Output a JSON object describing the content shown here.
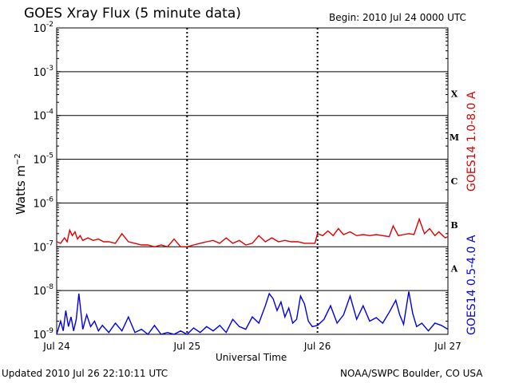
{
  "header": {
    "title": "GOES Xray Flux (5 minute data)",
    "begin": "Begin:  2010 Jul 24 0000 UTC"
  },
  "footer": {
    "updated": "Updated 2010 Jul 26 22:10:11 UTC",
    "credit": "NOAA/SWPC Boulder, CO USA"
  },
  "chart_data": {
    "type": "line",
    "title": "GOES Xray Flux (5 minute data)",
    "xlabel": "Universal Time",
    "ylabel": "Watts m^-2",
    "yscale": "log",
    "ylim": [
      1e-09,
      0.01
    ],
    "x_ticks": [
      "Jul 24",
      "Jul 25",
      "Jul 26",
      "Jul 27"
    ],
    "y_ticks": [
      {
        "base": "10",
        "exp": "-9"
      },
      {
        "base": "10",
        "exp": "-8"
      },
      {
        "base": "10",
        "exp": "-7"
      },
      {
        "base": "10",
        "exp": "-6"
      },
      {
        "base": "10",
        "exp": "-5"
      },
      {
        "base": "10",
        "exp": "-4"
      },
      {
        "base": "10",
        "exp": "-3"
      },
      {
        "base": "10",
        "exp": "-2"
      }
    ],
    "flare_classes": [
      {
        "label": "A",
        "exp": -8
      },
      {
        "label": "B",
        "exp": -7
      },
      {
        "label": "C",
        "exp": -6
      },
      {
        "label": "M",
        "exp": -5
      },
      {
        "label": "X",
        "exp": -4
      }
    ],
    "grid": true,
    "series": [
      {
        "name": "GOES14 1.0-8.0 A",
        "color": "#e00000",
        "x_days": [
          0.0,
          0.03,
          0.06,
          0.08,
          0.1,
          0.12,
          0.14,
          0.16,
          0.18,
          0.2,
          0.24,
          0.28,
          0.32,
          0.36,
          0.4,
          0.45,
          0.5,
          0.55,
          0.6,
          0.65,
          0.7,
          0.75,
          0.8,
          0.85,
          0.9,
          0.95,
          1.0,
          1.05,
          1.1,
          1.15,
          1.2,
          1.25,
          1.3,
          1.35,
          1.4,
          1.45,
          1.5,
          1.55,
          1.6,
          1.65,
          1.7,
          1.75,
          1.8,
          1.85,
          1.9,
          1.95,
          1.98,
          2.0,
          2.04,
          2.08,
          2.12,
          2.16,
          2.2,
          2.25,
          2.3,
          2.35,
          2.4,
          2.45,
          2.5,
          2.55,
          2.58,
          2.62,
          2.66,
          2.7,
          2.74,
          2.78,
          2.82,
          2.86,
          2.9,
          2.93,
          2.96,
          2.98,
          3.0
        ],
        "y": [
          1.3e-07,
          1.2e-07,
          1.6e-07,
          1.3e-07,
          2.4e-07,
          1.8e-07,
          2.2e-07,
          1.5e-07,
          1.8e-07,
          1.4e-07,
          1.6e-07,
          1.4e-07,
          1.5e-07,
          1.3e-07,
          1.3e-07,
          1.2e-07,
          2e-07,
          1.3e-07,
          1.2e-07,
          1.1e-07,
          1.1e-07,
          1e-07,
          1.1e-07,
          1e-07,
          1.5e-07,
          1e-07,
          1e-07,
          1.1e-07,
          1.2e-07,
          1.3e-07,
          1.4e-07,
          1.2e-07,
          1.6e-07,
          1.2e-07,
          1.4e-07,
          1.1e-07,
          1.2e-07,
          1.8e-07,
          1.3e-07,
          1.6e-07,
          1.3e-07,
          1.4e-07,
          1.3e-07,
          1.3e-07,
          1.2e-07,
          1.2e-07,
          1.2e-07,
          2e-07,
          1.8e-07,
          2.3e-07,
          1.8e-07,
          2.6e-07,
          1.9e-07,
          2.2e-07,
          1.8e-07,
          1.9e-07,
          1.8e-07,
          1.9e-07,
          1.8e-07,
          1.7e-07,
          3e-07,
          1.8e-07,
          1.9e-07,
          2e-07,
          1.9e-07,
          4.3e-07,
          2e-07,
          2.6e-07,
          1.8e-07,
          2.2e-07,
          1.8e-07,
          1.6e-07,
          1.7e-07
        ]
      },
      {
        "name": "GOES14 0.5-4.0 A",
        "color": "#0000e8",
        "x_days": [
          0.0,
          0.03,
          0.05,
          0.07,
          0.09,
          0.11,
          0.13,
          0.15,
          0.17,
          0.2,
          0.23,
          0.26,
          0.29,
          0.32,
          0.35,
          0.4,
          0.45,
          0.5,
          0.55,
          0.6,
          0.65,
          0.7,
          0.75,
          0.8,
          0.85,
          0.9,
          0.95,
          1.0,
          1.05,
          1.1,
          1.15,
          1.2,
          1.25,
          1.3,
          1.35,
          1.4,
          1.45,
          1.5,
          1.55,
          1.6,
          1.63,
          1.66,
          1.69,
          1.72,
          1.75,
          1.78,
          1.81,
          1.84,
          1.87,
          1.9,
          1.93,
          1.96,
          2.0,
          2.05,
          2.1,
          2.15,
          2.2,
          2.25,
          2.3,
          2.35,
          2.4,
          2.45,
          2.5,
          2.55,
          2.6,
          2.63,
          2.66,
          2.7,
          2.73,
          2.76,
          2.8,
          2.85,
          2.9,
          2.95,
          3.0
        ],
        "y": [
          1e-09,
          2e-09,
          1.2e-09,
          3.5e-09,
          1.5e-09,
          2.5e-09,
          1.2e-09,
          2.2e-09,
          8.5e-09,
          1.3e-09,
          2.8e-09,
          1.5e-09,
          2e-09,
          1.2e-09,
          1.6e-09,
          1.1e-09,
          1.8e-09,
          1.2e-09,
          2.5e-09,
          1.1e-09,
          1.3e-09,
          1e-09,
          1.6e-09,
          1e-09,
          1.1e-09,
          1e-09,
          1.2e-09,
          1e-09,
          1.4e-09,
          1.1e-09,
          1.5e-09,
          1.2e-09,
          1.6e-09,
          1.1e-09,
          2.2e-09,
          1.5e-09,
          1.3e-09,
          2.5e-09,
          1.8e-09,
          4.5e-09,
          8.5e-09,
          6.5e-09,
          3.5e-09,
          5.5e-09,
          2.5e-09,
          4e-09,
          1.8e-09,
          2.2e-09,
          7.5e-09,
          5e-09,
          2e-09,
          1.5e-09,
          1.6e-09,
          2.2e-09,
          4.5e-09,
          1.8e-09,
          2.8e-09,
          7.5e-09,
          2.2e-09,
          4.5e-09,
          2e-09,
          2.4e-09,
          1.8e-09,
          3.2e-09,
          6e-09,
          2.8e-09,
          1.7e-09,
          9.5e-09,
          3e-09,
          1.5e-09,
          1.8e-09,
          1.2e-09,
          1.8e-09,
          1.6e-09,
          1.3e-09
        ]
      }
    ]
  }
}
